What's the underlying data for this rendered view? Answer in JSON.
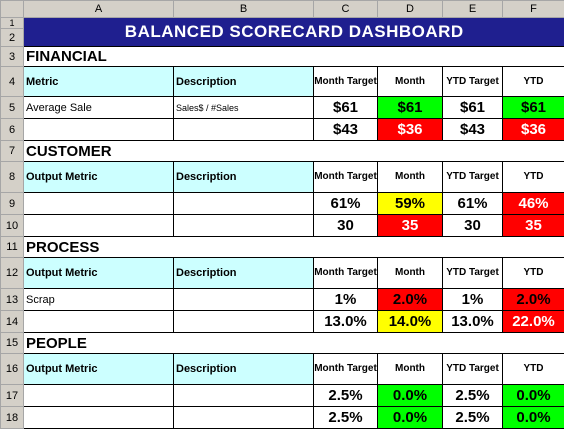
{
  "columns": [
    "A",
    "B",
    "C",
    "D",
    "E",
    "F"
  ],
  "rows": [
    "1",
    "2",
    "3",
    "4",
    "5",
    "6",
    "7",
    "8",
    "9",
    "10",
    "11",
    "12",
    "13",
    "14",
    "15",
    "16",
    "17",
    "18"
  ],
  "title": "BALANCED SCORECARD DASHBOARD",
  "headers": {
    "metric": "Metric",
    "output_metric": "Output Metric",
    "description": "Description",
    "month_target": "Month Target",
    "month": "Month",
    "ytd_target": "YTD Target",
    "ytd": "YTD"
  },
  "sections": {
    "financial": "FINANCIAL",
    "customer": "CUSTOMER",
    "process": "PROCESS",
    "people": "PEOPLE"
  },
  "financial": [
    {
      "metric": "Average Sale",
      "description": "Sales$ / #Sales",
      "month_target": "$61",
      "month": "$61",
      "ytd_target": "$61",
      "ytd": "$61"
    },
    {
      "metric": "",
      "description": "",
      "month_target": "$43",
      "month": "$36",
      "ytd_target": "$43",
      "ytd": "$36"
    }
  ],
  "customer": [
    {
      "metric": "",
      "description": "",
      "month_target": "61%",
      "month": "59%",
      "ytd_target": "61%",
      "ytd": "46%"
    },
    {
      "metric": "",
      "description": "",
      "month_target": "30",
      "month": "35",
      "ytd_target": "30",
      "ytd": "35"
    }
  ],
  "process": [
    {
      "metric": "Scrap",
      "description": "",
      "month_target": "1%",
      "month": "2.0%",
      "ytd_target": "1%",
      "ytd": "2.0%"
    },
    {
      "metric": "",
      "description": "",
      "month_target": "13.0%",
      "month": "14.0%",
      "ytd_target": "13.0%",
      "ytd": "22.0%"
    }
  ],
  "people": [
    {
      "metric": "",
      "description": "",
      "month_target": "2.5%",
      "month": "0.0%",
      "ytd_target": "2.5%",
      "ytd": "0.0%"
    },
    {
      "metric": "",
      "description": "",
      "month_target": "2.5%",
      "month": "0.0%",
      "ytd_target": "2.5%",
      "ytd": "0.0%"
    }
  ],
  "colors": {
    "title_bg": "#1f1f8f",
    "header_bg": "#ccffff",
    "good": "#00ff00",
    "bad": "#ff0000",
    "warn": "#ffff00"
  }
}
